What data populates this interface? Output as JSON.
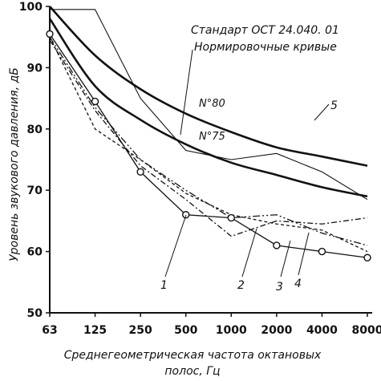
{
  "chart_data": {
    "type": "line",
    "title": "",
    "xlabel": [
      "Среднегеометрическая частота октановых",
      "полос, Гц"
    ],
    "ylabel": "Уровень звукового давления, дБ",
    "categories": [
      "63",
      "125",
      "250",
      "500",
      "1000",
      "2000",
      "4000",
      "8000"
    ],
    "y_ticks": [
      "50",
      "60",
      "70",
      "80",
      "90",
      "100"
    ],
    "ylim": [
      50,
      100
    ],
    "grid": false,
    "legend_text": [
      "Стандарт ОСТ 24.040. 01",
      "Нормировочные кривые"
    ],
    "reference_curves": [
      {
        "name": "N°80",
        "values": [
          100,
          92,
          86.5,
          82.5,
          79.5,
          77,
          75.5,
          74
        ]
      },
      {
        "name": "N°75",
        "values": [
          98,
          87,
          81.5,
          77.5,
          74.5,
          72.5,
          70.5,
          69
        ]
      }
    ],
    "series": [
      {
        "name": "1",
        "values": [
          95.5,
          84.5,
          73,
          66,
          65.5,
          61,
          60,
          59
        ]
      },
      {
        "name": "2",
        "values": [
          94.5,
          83,
          74,
          68.5,
          62.5,
          65,
          64.5,
          65.5
        ]
      },
      {
        "name": "3",
        "values": [
          95,
          80,
          75,
          69.5,
          66,
          64.5,
          63.5,
          60
        ]
      },
      {
        "name": "4",
        "values": [
          95,
          83.5,
          75,
          70,
          65.5,
          66,
          63,
          61
        ]
      },
      {
        "name": "5",
        "values": [
          99.5,
          99.5,
          85,
          76.5,
          75,
          76,
          73,
          68.5
        ]
      }
    ]
  }
}
